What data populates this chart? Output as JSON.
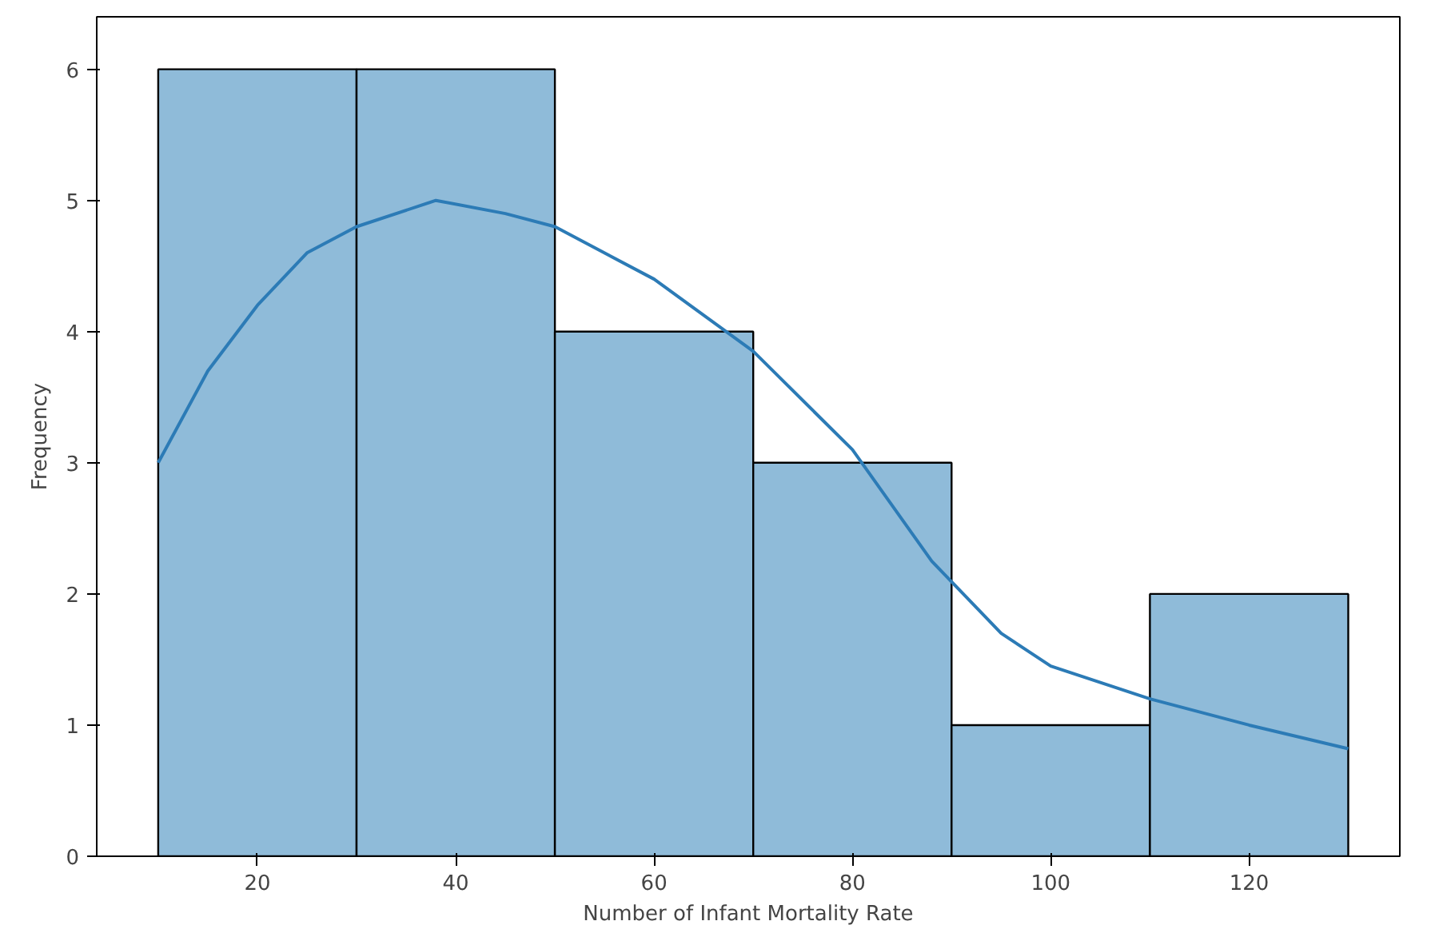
{
  "chart_data": {
    "type": "histogram",
    "xlabel": "Number of Infant Mortality Rate",
    "ylabel": "Frequency",
    "bins": [
      10,
      30,
      50,
      70,
      90,
      110,
      130
    ],
    "values": [
      6,
      6,
      4,
      3,
      1,
      2
    ],
    "color": "#8fbbd9",
    "series": [
      {
        "type": "line",
        "color": "#2c7bb6",
        "x": [
          10,
          15,
          20,
          25,
          30,
          38,
          45,
          50,
          60,
          70,
          80,
          88,
          95,
          100,
          110,
          120,
          130
        ],
        "values": [
          3.0,
          3.7,
          4.2,
          4.6,
          4.8,
          5.0,
          4.9,
          4.8,
          4.4,
          3.85,
          3.1,
          2.25,
          1.7,
          1.45,
          1.2,
          1.0,
          0.82
        ]
      }
    ],
    "xlim": [
      3.8,
      135.2
    ],
    "ylim": [
      0,
      6.4
    ],
    "xticks": [
      20,
      40,
      60,
      80,
      100,
      120
    ],
    "yticks": [
      0,
      1,
      2,
      3,
      4,
      5,
      6
    ],
    "grid": false
  }
}
